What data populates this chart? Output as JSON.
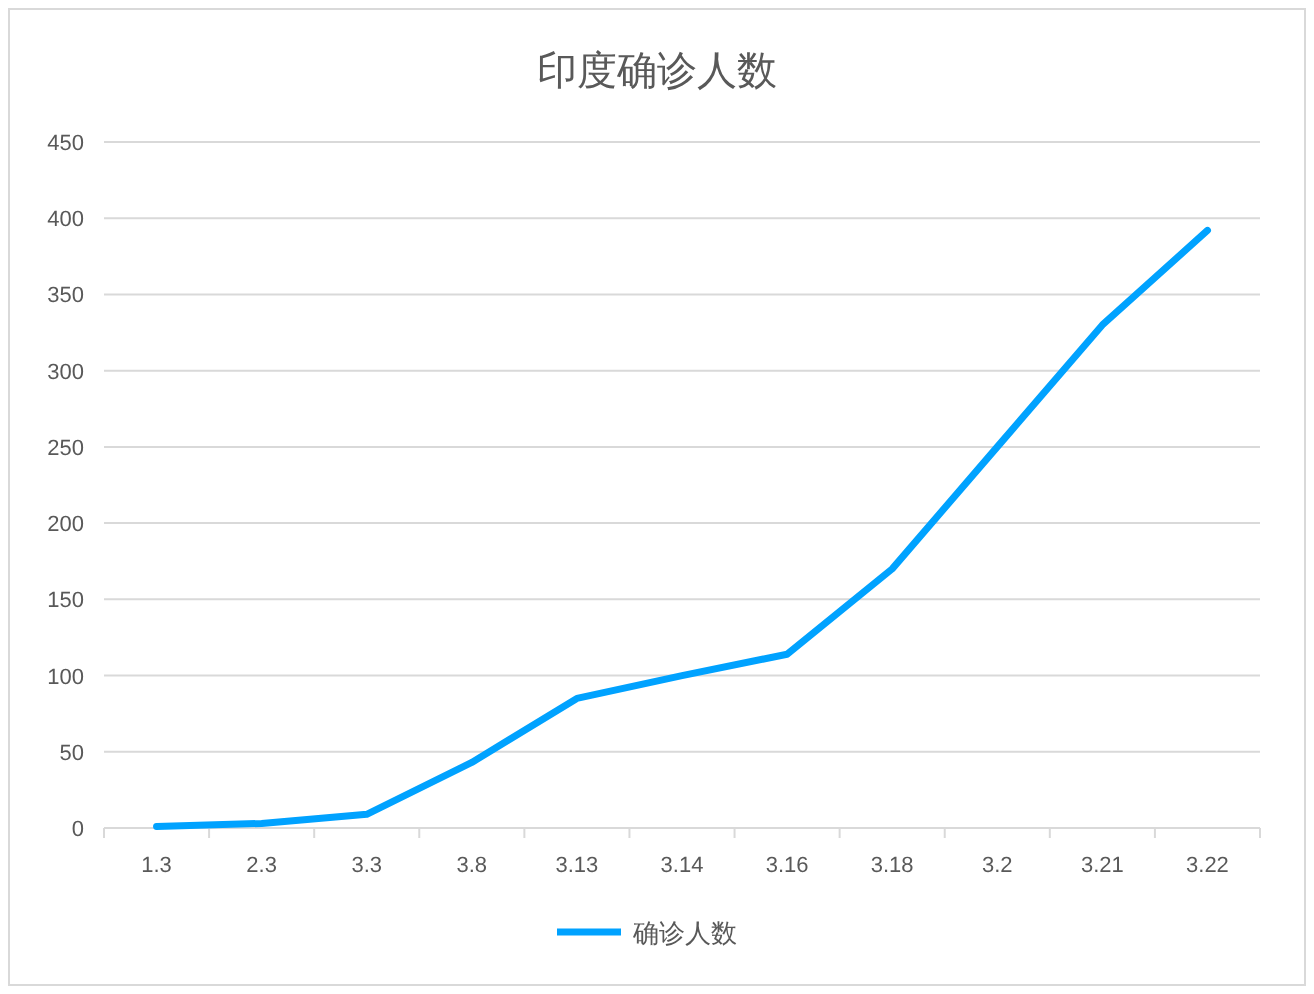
{
  "chart_data": {
    "type": "line",
    "title": "印度确诊人数",
    "categories": [
      "1.3",
      "2.3",
      "3.3",
      "3.8",
      "3.13",
      "3.14",
      "3.16",
      "3.18",
      "3.2",
      "3.21",
      "3.22"
    ],
    "series": [
      {
        "name": "确诊人数",
        "color": "#00a2ff",
        "values": [
          1,
          3,
          9,
          43,
          85,
          100,
          114,
          170,
          250,
          330,
          392
        ]
      }
    ],
    "ylim": [
      0,
      450
    ],
    "yticks": [
      0,
      50,
      100,
      150,
      200,
      250,
      300,
      350,
      400,
      450
    ],
    "grid": "y",
    "legend": "bottom"
  }
}
